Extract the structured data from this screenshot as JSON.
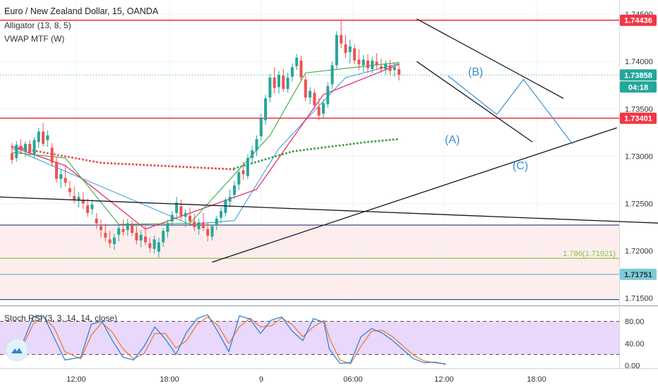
{
  "legend": {
    "title": "Euro / New Zealand Dollar, 15, OANDA",
    "alligator": "Alligator (13, 8, 5)",
    "vwap": "VWAP MTF (W)",
    "stoch": "Stoch RSI (3, 3, 14, 14, close)"
  },
  "price_badges": {
    "level_top": "1.74436",
    "current": "1.73858",
    "countdown": "04:18",
    "level_mid": "1.73401",
    "level_low": "1.71751",
    "fib_label": "1.786(1.71921)"
  },
  "wave_labels": {
    "a": "(A)",
    "b": "(B)",
    "c": "(C)"
  },
  "colors": {
    "bull": "#26a69a",
    "bear": "#ef5350",
    "resistance": "#f23645",
    "support": "#434a8c",
    "fib": "#8bc34a",
    "level_low": "#5db7c7",
    "stoch_bg": "#e9d8fb",
    "k_line": "#2c84d8",
    "d_line": "#f07a3a",
    "wave": "#3b8ed2",
    "vwap_green": "#3aa04a",
    "vwap_red": "#ea5050"
  },
  "chart_data": {
    "type": "candlestick",
    "price_axis": {
      "ticks": [
        "1.74500",
        "1.74000",
        "1.73500",
        "1.73000",
        "1.72500",
        "1.72000",
        "1.71500"
      ],
      "ylim": [
        1.7143,
        1.7465
      ]
    },
    "time_axis": {
      "ticks": [
        "12:00",
        "18:00",
        "9",
        "06:00",
        "12:00",
        "18:00"
      ]
    },
    "stoch_axis": {
      "ticks": [
        "80.00",
        "40.00",
        "0.00"
      ],
      "ylim": [
        -5,
        105
      ],
      "bands": [
        20,
        80
      ]
    },
    "horizontal_levels": [
      {
        "price": 1.74436,
        "role": "resistance"
      },
      {
        "price": 1.73401,
        "role": "resistance"
      },
      {
        "price": 1.72272,
        "role": "support"
      },
      {
        "price": 1.71921,
        "role": "fib"
      },
      {
        "price": 1.71751,
        "role": "support-low"
      },
      {
        "price": 1.71485,
        "role": "support"
      }
    ],
    "ohlc": [
      [
        1.7303,
        1.7314,
        1.7292,
        1.7296
      ],
      [
        1.7298,
        1.7316,
        1.7294,
        1.7312
      ],
      [
        1.7311,
        1.7318,
        1.7302,
        1.7307
      ],
      [
        1.7305,
        1.7316,
        1.7299,
        1.7313
      ],
      [
        1.7313,
        1.7317,
        1.73,
        1.7304
      ],
      [
        1.7301,
        1.732,
        1.7298,
        1.7317
      ],
      [
        1.7315,
        1.733,
        1.7309,
        1.7326
      ],
      [
        1.7326,
        1.7335,
        1.731,
        1.7313
      ],
      [
        1.7317,
        1.7327,
        1.731,
        1.7322
      ],
      [
        1.7309,
        1.7314,
        1.7289,
        1.7293
      ],
      [
        1.7294,
        1.73,
        1.7272,
        1.7276
      ],
      [
        1.7276,
        1.7286,
        1.7266,
        1.7281
      ],
      [
        1.7277,
        1.729,
        1.7268,
        1.7272
      ],
      [
        1.7266,
        1.7274,
        1.7257,
        1.7262
      ],
      [
        1.7258,
        1.7268,
        1.725,
        1.7254
      ],
      [
        1.7253,
        1.7262,
        1.7246,
        1.7257
      ],
      [
        1.7254,
        1.7262,
        1.7244,
        1.725
      ],
      [
        1.7248,
        1.7255,
        1.7236,
        1.724
      ],
      [
        1.7244,
        1.7254,
        1.7238,
        1.7249
      ],
      [
        1.7234,
        1.724,
        1.7223,
        1.7229
      ],
      [
        1.7226,
        1.7233,
        1.7214,
        1.7222
      ],
      [
        1.7219,
        1.7229,
        1.721,
        1.7214
      ],
      [
        1.7212,
        1.7221,
        1.7203,
        1.7208
      ],
      [
        1.7207,
        1.7218,
        1.7201,
        1.7214
      ],
      [
        1.7217,
        1.7228,
        1.721,
        1.7224
      ],
      [
        1.7223,
        1.7233,
        1.7216,
        1.722
      ],
      [
        1.7222,
        1.7234,
        1.7216,
        1.7229
      ],
      [
        1.7227,
        1.7232,
        1.7216,
        1.7219
      ],
      [
        1.7219,
        1.7226,
        1.7207,
        1.7211
      ],
      [
        1.7211,
        1.7222,
        1.7204,
        1.7217
      ],
      [
        1.7215,
        1.7226,
        1.7206,
        1.7209
      ],
      [
        1.7208,
        1.7214,
        1.7198,
        1.7203
      ],
      [
        1.7202,
        1.7216,
        1.7197,
        1.7212
      ],
      [
        1.7199,
        1.7214,
        1.7193,
        1.7209
      ],
      [
        1.7209,
        1.7224,
        1.7204,
        1.7221
      ],
      [
        1.722,
        1.7233,
        1.7214,
        1.7229
      ],
      [
        1.7231,
        1.7242,
        1.7226,
        1.7238
      ],
      [
        1.724,
        1.7257,
        1.7233,
        1.7251
      ],
      [
        1.7247,
        1.7254,
        1.7233,
        1.7237
      ],
      [
        1.7236,
        1.7244,
        1.7225,
        1.724
      ],
      [
        1.7237,
        1.7246,
        1.7226,
        1.7231
      ],
      [
        1.7231,
        1.7239,
        1.7221,
        1.7225
      ],
      [
        1.7223,
        1.7234,
        1.7217,
        1.723
      ],
      [
        1.723,
        1.724,
        1.7221,
        1.7224
      ],
      [
        1.7223,
        1.723,
        1.721,
        1.7216
      ],
      [
        1.7215,
        1.7228,
        1.7211,
        1.7226
      ],
      [
        1.7227,
        1.7237,
        1.7222,
        1.7234
      ],
      [
        1.7235,
        1.7246,
        1.7229,
        1.7242
      ],
      [
        1.724,
        1.7256,
        1.7236,
        1.7254
      ],
      [
        1.7252,
        1.7265,
        1.7246,
        1.7257
      ],
      [
        1.7259,
        1.7274,
        1.7255,
        1.7269
      ],
      [
        1.727,
        1.7286,
        1.7264,
        1.7283
      ],
      [
        1.7285,
        1.7294,
        1.7275,
        1.7281
      ],
      [
        1.7279,
        1.7302,
        1.7276,
        1.7298
      ],
      [
        1.7298,
        1.7311,
        1.7291,
        1.7306
      ],
      [
        1.7306,
        1.7322,
        1.73,
        1.7318
      ],
      [
        1.7321,
        1.7345,
        1.7316,
        1.734
      ],
      [
        1.7338,
        1.7365,
        1.7333,
        1.7361
      ],
      [
        1.7362,
        1.7387,
        1.7357,
        1.7383
      ],
      [
        1.7383,
        1.7394,
        1.7366,
        1.7372
      ],
      [
        1.7373,
        1.739,
        1.7366,
        1.7386
      ],
      [
        1.7385,
        1.7392,
        1.7368,
        1.7371
      ],
      [
        1.7371,
        1.7388,
        1.7367,
        1.7383
      ],
      [
        1.7384,
        1.7398,
        1.7379,
        1.7394
      ],
      [
        1.7395,
        1.7408,
        1.7391,
        1.7404
      ],
      [
        1.7401,
        1.7406,
        1.7379,
        1.7383
      ],
      [
        1.7381,
        1.7385,
        1.7358,
        1.7362
      ],
      [
        1.7362,
        1.7373,
        1.7355,
        1.7369
      ],
      [
        1.7367,
        1.7371,
        1.735,
        1.7354
      ],
      [
        1.7352,
        1.7361,
        1.7338,
        1.7343
      ],
      [
        1.7345,
        1.736,
        1.7339,
        1.7356
      ],
      [
        1.7355,
        1.7378,
        1.7351,
        1.7374
      ],
      [
        1.7376,
        1.74,
        1.7371,
        1.7396
      ],
      [
        1.7396,
        1.7432,
        1.7392,
        1.7428
      ],
      [
        1.7428,
        1.7444,
        1.7414,
        1.7419
      ],
      [
        1.7418,
        1.7428,
        1.7404,
        1.7409
      ],
      [
        1.741,
        1.7423,
        1.7398,
        1.7416
      ],
      [
        1.7414,
        1.7418,
        1.7397,
        1.7401
      ],
      [
        1.7402,
        1.7413,
        1.7391,
        1.7397
      ],
      [
        1.7396,
        1.7407,
        1.7389,
        1.7402
      ],
      [
        1.7401,
        1.7408,
        1.7388,
        1.7393
      ],
      [
        1.7392,
        1.7405,
        1.7388,
        1.7401
      ],
      [
        1.74,
        1.7409,
        1.7391,
        1.7396
      ],
      [
        1.7395,
        1.7403,
        1.7388,
        1.7392
      ],
      [
        1.7392,
        1.7401,
        1.7386,
        1.7397
      ],
      [
        1.7396,
        1.7402,
        1.7385,
        1.739
      ],
      [
        1.7391,
        1.7398,
        1.7384,
        1.7394
      ],
      [
        1.7392,
        1.7397,
        1.738,
        1.7386
      ]
    ],
    "indicators": {
      "alligator_jaw": [
        [
          0,
          1.7308
        ],
        [
          40,
          1.7228
        ],
        [
          50,
          1.7232
        ],
        [
          60,
          1.7308
        ],
        [
          75,
          1.7383
        ],
        [
          87,
          1.7398
        ]
      ],
      "alligator_teeth": [
        [
          0,
          1.731
        ],
        [
          12,
          1.729
        ],
        [
          30,
          1.7223
        ],
        [
          55,
          1.7265
        ],
        [
          70,
          1.7365
        ],
        [
          87,
          1.7397
        ]
      ],
      "alligator_lips": [
        [
          0,
          1.7304
        ],
        [
          12,
          1.7298
        ],
        [
          24,
          1.7228
        ],
        [
          40,
          1.7229
        ],
        [
          58,
          1.7322
        ],
        [
          66,
          1.7388
        ],
        [
          87,
          1.7399
        ]
      ],
      "vwap_red": [
        [
          0,
          1.731
        ],
        [
          20,
          1.7293
        ],
        [
          50,
          1.7286
        ]
      ],
      "vwap_green": [
        [
          50,
          1.7287
        ],
        [
          63,
          1.7305
        ],
        [
          80,
          1.7315
        ],
        [
          87,
          1.7318
        ]
      ]
    },
    "stoch_k": [
      [
        0,
        30
      ],
      [
        4,
        40
      ],
      [
        8,
        88
      ],
      [
        12,
        90
      ],
      [
        16,
        50
      ],
      [
        20,
        10
      ],
      [
        26,
        15
      ],
      [
        30,
        75
      ],
      [
        34,
        80
      ],
      [
        38,
        45
      ],
      [
        42,
        15
      ],
      [
        46,
        10
      ],
      [
        50,
        35
      ],
      [
        54,
        70
      ],
      [
        58,
        48
      ],
      [
        62,
        20
      ],
      [
        66,
        60
      ],
      [
        70,
        85
      ],
      [
        74,
        92
      ],
      [
        78,
        60
      ],
      [
        82,
        25
      ],
      [
        86,
        90
      ],
      [
        90,
        84
      ],
      [
        94,
        58
      ],
      [
        98,
        82
      ],
      [
        102,
        88
      ],
      [
        106,
        62
      ],
      [
        110,
        45
      ],
      [
        114,
        85
      ],
      [
        118,
        78
      ],
      [
        120,
        30
      ],
      [
        124,
        4
      ],
      [
        128,
        5
      ],
      [
        132,
        52
      ],
      [
        136,
        67
      ],
      [
        140,
        59
      ],
      [
        144,
        45
      ],
      [
        148,
        28
      ],
      [
        152,
        12
      ],
      [
        156,
        5
      ],
      [
        160,
        6
      ],
      [
        164,
        2
      ]
    ],
    "stoch_d": [
      [
        0,
        35
      ],
      [
        4,
        35
      ],
      [
        8,
        75
      ],
      [
        12,
        88
      ],
      [
        16,
        68
      ],
      [
        20,
        25
      ],
      [
        26,
        12
      ],
      [
        30,
        55
      ],
      [
        34,
        78
      ],
      [
        38,
        60
      ],
      [
        42,
        30
      ],
      [
        46,
        12
      ],
      [
        50,
        22
      ],
      [
        54,
        58
      ],
      [
        58,
        58
      ],
      [
        62,
        32
      ],
      [
        66,
        45
      ],
      [
        70,
        75
      ],
      [
        74,
        88
      ],
      [
        78,
        72
      ],
      [
        82,
        40
      ],
      [
        86,
        70
      ],
      [
        90,
        86
      ],
      [
        94,
        70
      ],
      [
        98,
        72
      ],
      [
        102,
        86
      ],
      [
        106,
        74
      ],
      [
        110,
        52
      ],
      [
        114,
        70
      ],
      [
        118,
        82
      ],
      [
        120,
        50
      ],
      [
        124,
        10
      ],
      [
        128,
        3
      ],
      [
        132,
        35
      ],
      [
        136,
        62
      ],
      [
        140,
        64
      ],
      [
        144,
        52
      ],
      [
        148,
        35
      ],
      [
        152,
        18
      ],
      [
        156,
        8
      ],
      [
        160,
        5
      ],
      [
        164,
        3
      ]
    ],
    "drawings": {
      "trendlines": [
        {
          "from": [
            -25,
            1.7261
          ],
          "to": [
            147,
            1.7229
          ]
        },
        {
          "from": [
            45,
            1.7188
          ],
          "to": [
            136,
            1.733
          ]
        },
        {
          "from": [
            91,
            1.7445
          ],
          "to": [
            124,
            1.7361
          ]
        },
        {
          "from": [
            91,
            1.74
          ],
          "to": [
            117,
            1.7315
          ]
        }
      ],
      "wave_path": [
        [
          98,
          1.7385
        ],
        [
          109,
          1.7344
        ],
        [
          115,
          1.7381
        ],
        [
          126,
          1.7313
        ]
      ]
    }
  }
}
